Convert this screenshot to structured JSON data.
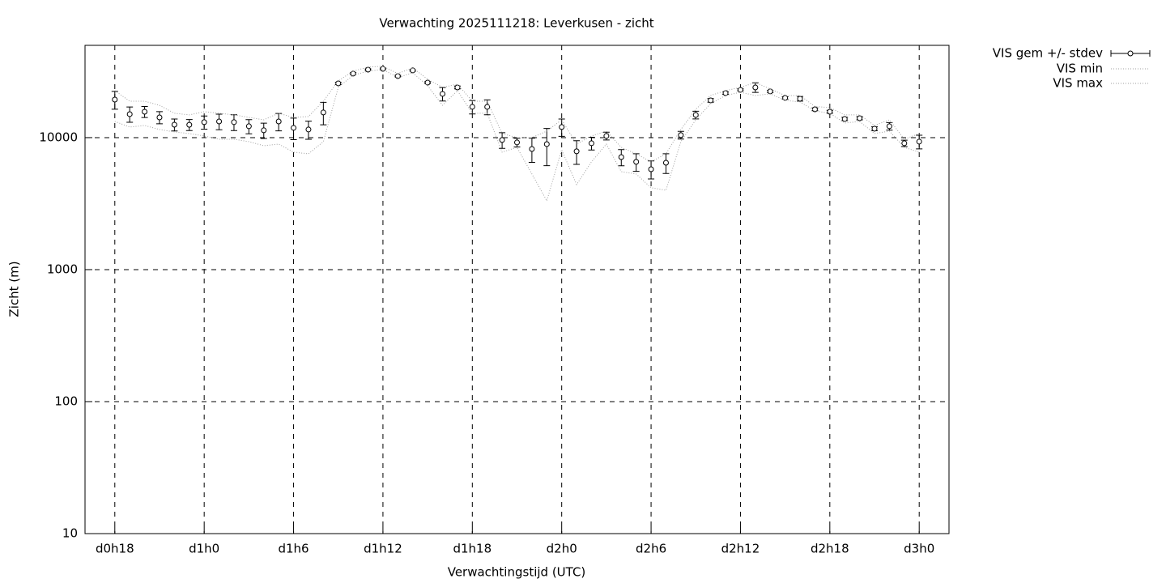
{
  "chart_data": {
    "type": "errorbar",
    "title": "Verwachting 2025111218: Leverkusen - zicht",
    "x_label": "Verwachtingstijd (UTC)",
    "y_label": "Zicht (m)",
    "log_y": true,
    "grid": true,
    "legend": "outside-top-right",
    "xlim": [
      16,
      74
    ],
    "ylim": [
      10,
      50000
    ],
    "yticks": [
      10,
      100,
      1000,
      10000
    ],
    "xticks": [
      {
        "value": 18,
        "label": "d0h18"
      },
      {
        "value": 24,
        "label": "d1h0"
      },
      {
        "value": 30,
        "label": "d1h6"
      },
      {
        "value": 36,
        "label": "d1h12"
      },
      {
        "value": 42,
        "label": "d1h18"
      },
      {
        "value": 48,
        "label": "d2h0"
      },
      {
        "value": 54,
        "label": "d2h6"
      },
      {
        "value": 60,
        "label": "d2h12"
      },
      {
        "value": 66,
        "label": "d2h18"
      },
      {
        "value": 72,
        "label": "d3h0"
      }
    ],
    "x": [
      18,
      19,
      20,
      21,
      22,
      23,
      24,
      25,
      26,
      27,
      28,
      29,
      30,
      31,
      32,
      33,
      34,
      35,
      36,
      37,
      38,
      39,
      40,
      41,
      42,
      43,
      44,
      45,
      46,
      47,
      48,
      49,
      50,
      51,
      52,
      53,
      54,
      55,
      56,
      57,
      58,
      59,
      60,
      61,
      62,
      63,
      64,
      65,
      66,
      67,
      68,
      69,
      70,
      71,
      72
    ],
    "series": [
      {
        "name": "VIS gem +/- stdev",
        "color": "#000000",
        "values": [
          19400,
          15060,
          15700,
          14230,
          12530,
          12500,
          13090,
          13260,
          13100,
          12190,
          11360,
          13250,
          11850,
          11520,
          15500,
          25760,
          30530,
          32740,
          33200,
          29250,
          32300,
          26120,
          21440,
          23990,
          17110,
          17100,
          9590,
          9190,
          8200,
          8930,
          12020,
          7870,
          9060,
          10290,
          7120,
          6550,
          5760,
          6450,
          10440,
          14850,
          19150,
          21740,
          23010,
          24000,
          22380,
          19990,
          19700,
          16390,
          15700,
          13840,
          14030,
          11680,
          12190,
          9060,
          9320
        ],
        "errors": [
          3000,
          2000,
          1500,
          1500,
          1300,
          1200,
          1500,
          1800,
          1800,
          1500,
          1500,
          2000,
          2200,
          1800,
          3000,
          500,
          500,
          400,
          400,
          400,
          400,
          400,
          2500,
          600,
          2000,
          2200,
          1300,
          700,
          1700,
          2800,
          1800,
          1600,
          1000,
          700,
          1000,
          1000,
          900,
          1100,
          700,
          1000,
          600,
          500,
          400,
          2000,
          400,
          400,
          800,
          400,
          400,
          400,
          400,
          400,
          800,
          500,
          1100
        ]
      },
      {
        "name": "VIS min",
        "color": "#a0a0a0",
        "values": [
          13260,
          12020,
          12360,
          11520,
          11040,
          10730,
          10290,
          9720,
          9720,
          9320,
          8680,
          8930,
          7760,
          7540,
          9320,
          24010,
          29700,
          31880,
          32800,
          28480,
          30990,
          24710,
          17570,
          22700,
          15290,
          15290,
          7760,
          8440,
          5300,
          3320,
          8090,
          4410,
          6550,
          8930,
          5520,
          5300,
          4170,
          3990,
          9320,
          13640,
          18080,
          20840,
          22060,
          20840,
          21450,
          19150,
          18620,
          15950,
          15290,
          12890,
          13260,
          10730,
          11200,
          8440,
          7760
        ]
      },
      {
        "name": "VIS max",
        "color": "#a0a0a0",
        "values": [
          22700,
          18880,
          18880,
          17570,
          15290,
          14860,
          15720,
          15290,
          14860,
          14230,
          13640,
          15290,
          14230,
          14430,
          18880,
          26900,
          31880,
          34230,
          34720,
          30560,
          33750,
          27680,
          24010,
          25420,
          18880,
          18880,
          10730,
          10000,
          10000,
          11200,
          13640,
          8930,
          10290,
          11200,
          8440,
          7540,
          6550,
          7540,
          11520,
          16400,
          20840,
          22700,
          24010,
          26150,
          23360,
          20840,
          20840,
          17220,
          16870,
          14860,
          14860,
          12360,
          13640,
          9720,
          10730
        ]
      }
    ]
  }
}
